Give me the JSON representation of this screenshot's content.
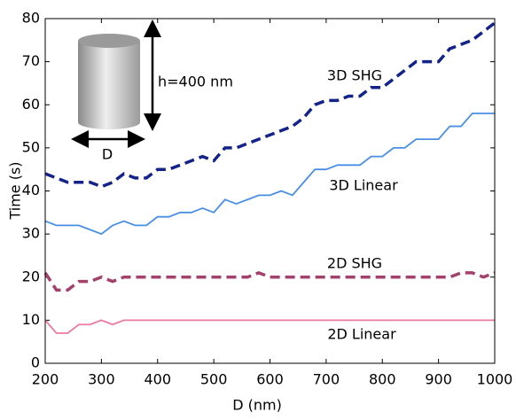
{
  "chart_data": {
    "type": "line",
    "xlabel": "D (nm)",
    "ylabel": "Time (s)",
    "x": [
      200,
      220,
      240,
      260,
      280,
      300,
      320,
      340,
      360,
      380,
      400,
      420,
      440,
      460,
      480,
      500,
      520,
      540,
      560,
      580,
      600,
      620,
      640,
      660,
      680,
      700,
      720,
      740,
      760,
      780,
      800,
      820,
      840,
      860,
      880,
      900,
      920,
      940,
      960,
      980,
      1000
    ],
    "series": [
      {
        "name": "3D SHG",
        "color": "#14238a",
        "style": "dashed",
        "values": [
          44,
          43,
          42,
          42,
          42,
          41,
          42,
          44,
          43,
          43,
          45,
          45,
          46,
          47,
          48,
          47,
          50,
          50,
          51,
          52,
          53,
          54,
          55,
          57,
          60,
          61,
          61,
          62,
          62,
          64,
          64,
          66,
          68,
          70,
          70,
          70,
          73,
          74,
          75,
          77,
          79
        ]
      },
      {
        "name": "3D Linear",
        "color": "#4a8fe6",
        "style": "solid",
        "values": [
          33,
          32,
          32,
          32,
          31,
          30,
          32,
          33,
          32,
          32,
          34,
          34,
          35,
          35,
          36,
          35,
          38,
          37,
          38,
          39,
          39,
          40,
          39,
          42,
          45,
          45,
          46,
          46,
          46,
          48,
          48,
          50,
          50,
          52,
          52,
          52,
          55,
          55,
          58,
          58,
          58
        ]
      },
      {
        "name": "2D SHG",
        "color": "#a3406c",
        "style": "dashed",
        "values": [
          21,
          17,
          17,
          19,
          19,
          20,
          19,
          20,
          20,
          20,
          20,
          20,
          20,
          20,
          20,
          20,
          20,
          20,
          20,
          21,
          20,
          20,
          20,
          20,
          20,
          20,
          20,
          20,
          20,
          20,
          20,
          20,
          20,
          20,
          20,
          20,
          20,
          21,
          21,
          20,
          21
        ]
      },
      {
        "name": "2D Linear",
        "color": "#ec7aa2",
        "style": "solid",
        "values": [
          10,
          7,
          7,
          9,
          9,
          10,
          9,
          10,
          10,
          10,
          10,
          10,
          10,
          10,
          10,
          10,
          10,
          10,
          10,
          10,
          10,
          10,
          10,
          10,
          10,
          10,
          10,
          10,
          10,
          10,
          10,
          10,
          10,
          10,
          10,
          10,
          10,
          10,
          10,
          10,
          10
        ]
      }
    ],
    "xlim": [
      200,
      1000
    ],
    "xticks": [
      200,
      300,
      400,
      500,
      600,
      700,
      800,
      900,
      1000
    ],
    "ylim": [
      0,
      80
    ],
    "yticks": [
      0,
      10,
      20,
      30,
      40,
      50,
      60,
      70,
      80
    ],
    "grid": false,
    "annotations": [
      "h=400 nm",
      "D"
    ]
  }
}
